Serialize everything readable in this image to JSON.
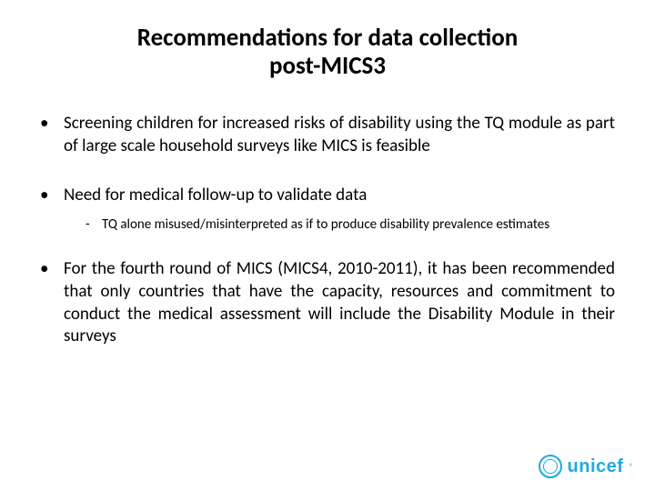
{
  "title": {
    "line1": "Recommendations for data collection",
    "line2": "post-MICS3",
    "fontsize": 27,
    "color": "#000000"
  },
  "bullets": [
    {
      "level": 1,
      "text": "Screening children for increased risks of disability using the TQ module as part of large scale household surveys like MICS is feasible",
      "fontsize": 19,
      "justify": true
    },
    {
      "level": 1,
      "text": "Need for medical follow-up to validate data",
      "fontsize": 19,
      "justify": false
    },
    {
      "level": 2,
      "text": "TQ alone misused/misinterpreted as if to produce disability prevalence estimates",
      "fontsize": 15
    },
    {
      "level": 1,
      "text": "For the fourth round of MICS (MICS4, 2010-2011), it has been recommended that only countries that have the capacity, resources and commitment to conduct the medical assessment will include the Disability Module in their surveys",
      "fontsize": 19,
      "justify": true
    }
  ],
  "logo": {
    "text": "unicef",
    "color": "#1cabe2",
    "fontsize": 20
  },
  "colors": {
    "background": "#ffffff",
    "text": "#000000"
  }
}
